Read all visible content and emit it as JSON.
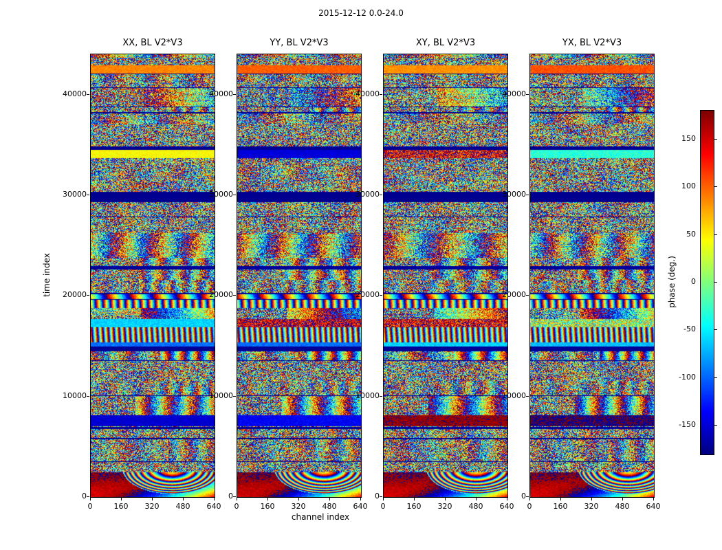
{
  "figure": {
    "title": "2015-12-12 0.0-24.0"
  },
  "axes": {
    "xlabel": "channel index",
    "ylabel": "time index"
  },
  "panels": [
    {
      "title": "XX, BL V2*V3"
    },
    {
      "title": "YY, BL V2*V3"
    },
    {
      "title": "XY, BL V2*V3"
    },
    {
      "title": "YX, BL V2*V3"
    }
  ],
  "colorbar": {
    "label": "phase (deg.)"
  },
  "chart_data": {
    "type": "heatmap",
    "title": "2015-12-12 0.0-24.0",
    "panels": [
      "XX, BL V2*V3",
      "YY, BL V2*V3",
      "XY, BL V2*V3",
      "YX, BL V2*V3"
    ],
    "xlabel": "channel index",
    "ylabel": "time index",
    "xlim": [
      0,
      640
    ],
    "ylim": [
      0,
      44000
    ],
    "x_ticks": [
      0,
      160,
      320,
      480,
      640
    ],
    "y_ticks": [
      0,
      10000,
      20000,
      30000,
      40000
    ],
    "colorbar_label": "phase (deg.)",
    "colorbar_ticks": [
      150,
      100,
      50,
      0,
      -50,
      -100,
      -150
    ],
    "value_range": [
      -180,
      180
    ],
    "colormap": "jet",
    "grid": false,
    "content": "Four waterfall panels of interferometric visibility phase (polarizations XX, YY, XY, YX for baseline V2*V3) versus channel index and time index; dense pseudo-random phase fringes with horizontal time-banding, a solid dark-blue flagged band near time 30000, thin dark flagged rows, and smooth large-scale fringe rings near time 0-2500; individual pixel values not resolvable."
  }
}
